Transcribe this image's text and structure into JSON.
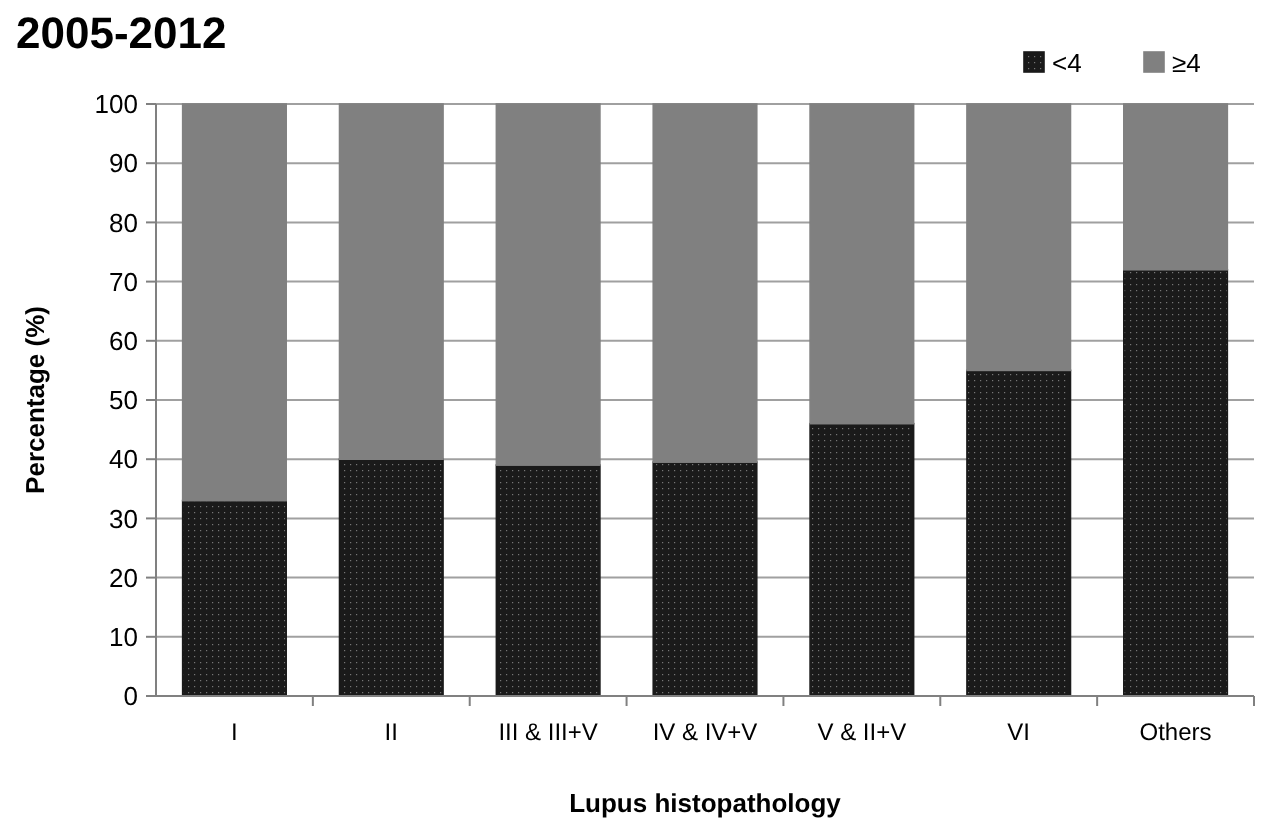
{
  "chart_data": {
    "type": "bar",
    "title": "2005-2012",
    "xlabel": "Lupus histopathology",
    "ylabel": "Percentage (%)",
    "categories": [
      "I",
      "II",
      "III & III+V",
      "IV & IV+V",
      "V & II+V",
      "VI",
      "Others"
    ],
    "series": [
      {
        "name": "<4",
        "color": "#1a1a1a",
        "values": [
          33,
          40,
          39,
          39.5,
          46,
          55,
          72
        ]
      },
      {
        "name": "≥4",
        "color": "#808080",
        "values": [
          67,
          60,
          61,
          60.5,
          54,
          45,
          28
        ]
      }
    ],
    "stacked": true,
    "ylim": [
      0,
      100
    ],
    "yticks": [
      0,
      10,
      20,
      30,
      40,
      50,
      60,
      70,
      80,
      90,
      100
    ],
    "grid": "y",
    "legend": "top right"
  }
}
